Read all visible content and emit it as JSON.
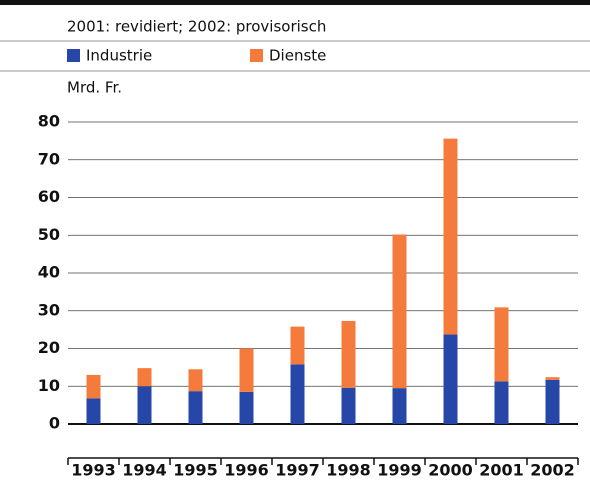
{
  "chart_data": {
    "type": "stacked_bar",
    "note": "2001: revidiert; 2002: provisorisch",
    "y_label": "Mrd. Fr.",
    "categories": [
      "1993",
      "1994",
      "1995",
      "1996",
      "1997",
      "1998",
      "1999",
      "2000",
      "2001",
      "2002"
    ],
    "series": [
      {
        "name": "Industrie",
        "color": "#2646a8",
        "values": [
          6.8,
          10,
          8.7,
          8.5,
          15.8,
          9.6,
          9.5,
          23.7,
          11.3,
          11.7
        ]
      },
      {
        "name": "Dienste",
        "color": "#f47b3c",
        "values": [
          6.2,
          4.8,
          5.8,
          11.5,
          10,
          17.7,
          40.7,
          51.9,
          19.6,
          0.7
        ]
      }
    ],
    "ylim": [
      0,
      80
    ],
    "yticks": [
      0,
      10,
      20,
      30,
      40,
      50,
      60,
      70,
      80
    ],
    "grid": true
  }
}
